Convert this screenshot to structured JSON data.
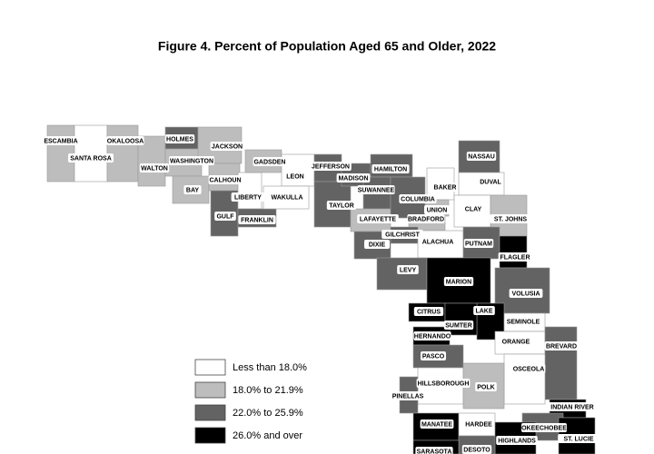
{
  "map": {
    "title": "Figure 4. Percent of Population Aged 65 and Older, 2022",
    "legend": [
      {
        "label": "Less than 18.0%",
        "color": "#ffffff"
      },
      {
        "label": "18.0% to 21.9%",
        "color": "#bdbdbd"
      },
      {
        "label": "22.0% to 25.9%",
        "color": "#636363"
      },
      {
        "label": "26.0% and over",
        "color": "#000000"
      }
    ],
    "counties": [
      {
        "name": "ESCAMBIA",
        "color": "#bdbdbd"
      },
      {
        "name": "SANTA ROSA",
        "color": "#ffffff"
      },
      {
        "name": "OKALOOSA",
        "color": "#bdbdbd"
      },
      {
        "name": "WALTON",
        "color": "#bdbdbd"
      },
      {
        "name": "HOLMES",
        "color": "#636363"
      },
      {
        "name": "WASHINGTON",
        "color": "#bdbdbd"
      },
      {
        "name": "JACKSON",
        "color": "#bdbdbd"
      },
      {
        "name": "BAY",
        "color": "#bdbdbd"
      },
      {
        "name": "CALHOUN",
        "color": "#bdbdbd"
      },
      {
        "name": "GULF",
        "color": "#636363"
      },
      {
        "name": "LIBERTY",
        "color": "#ffffff"
      },
      {
        "name": "FRANKLIN",
        "color": "#636363"
      },
      {
        "name": "GADSDEN",
        "color": "#bdbdbd"
      },
      {
        "name": "LEON",
        "color": "#ffffff"
      },
      {
        "name": "WAKULLA",
        "color": "#ffffff"
      },
      {
        "name": "JEFFERSON",
        "color": "#636363"
      },
      {
        "name": "TAYLOR",
        "color": "#636363"
      },
      {
        "name": "MADISON",
        "color": "#636363"
      },
      {
        "name": "HAMILTON",
        "color": "#636363"
      },
      {
        "name": "SUWANNEE",
        "color": "#636363"
      },
      {
        "name": "LAFAYETTE",
        "color": "#bdbdbd"
      },
      {
        "name": "COLUMBIA",
        "color": "#636363"
      },
      {
        "name": "BAKER",
        "color": "#ffffff"
      },
      {
        "name": "NASSAU",
        "color": "#636363"
      },
      {
        "name": "DUVAL",
        "color": "#ffffff"
      },
      {
        "name": "UNION",
        "color": "#bdbdbd"
      },
      {
        "name": "BRADFORD",
        "color": "#bdbdbd"
      },
      {
        "name": "CLAY",
        "color": "#ffffff"
      },
      {
        "name": "ST. JOHNS",
        "color": "#bdbdbd"
      },
      {
        "name": "GILCHRIST",
        "color": "#636363"
      },
      {
        "name": "DIXIE",
        "color": "#636363"
      },
      {
        "name": "ALACHUA",
        "color": "#ffffff"
      },
      {
        "name": "PUTNAM",
        "color": "#636363"
      },
      {
        "name": "FLAGLER",
        "color": "#000000"
      },
      {
        "name": "LEVY",
        "color": "#636363"
      },
      {
        "name": "MARION",
        "color": "#000000"
      },
      {
        "name": "VOLUSIA",
        "color": "#636363"
      },
      {
        "name": "CITRUS",
        "color": "#000000"
      },
      {
        "name": "LAKE",
        "color": "#000000"
      },
      {
        "name": "SUMTER",
        "color": "#000000"
      },
      {
        "name": "SEMINOLE",
        "color": "#ffffff"
      },
      {
        "name": "HERNANDO",
        "color": "#000000"
      },
      {
        "name": "ORANGE",
        "color": "#ffffff"
      },
      {
        "name": "BREVARD",
        "color": "#636363"
      },
      {
        "name": "PASCO",
        "color": "#636363"
      },
      {
        "name": "OSCEOLA",
        "color": "#ffffff"
      },
      {
        "name": "HILLSBOROUGH",
        "color": "#ffffff"
      },
      {
        "name": "POLK",
        "color": "#bdbdbd"
      },
      {
        "name": "PINELLAS",
        "color": "#636363"
      },
      {
        "name": "INDIAN RIVER",
        "color": "#000000"
      },
      {
        "name": "MANATEE",
        "color": "#000000"
      },
      {
        "name": "HARDEE",
        "color": "#ffffff"
      },
      {
        "name": "OKEECHOBEE",
        "color": "#636363"
      },
      {
        "name": "HIGHLANDS",
        "color": "#000000"
      },
      {
        "name": "ST. LUCIE",
        "color": "#000000"
      },
      {
        "name": "DESOTO",
        "color": "#636363"
      },
      {
        "name": "SARASOTA",
        "color": "#000000"
      }
    ]
  }
}
